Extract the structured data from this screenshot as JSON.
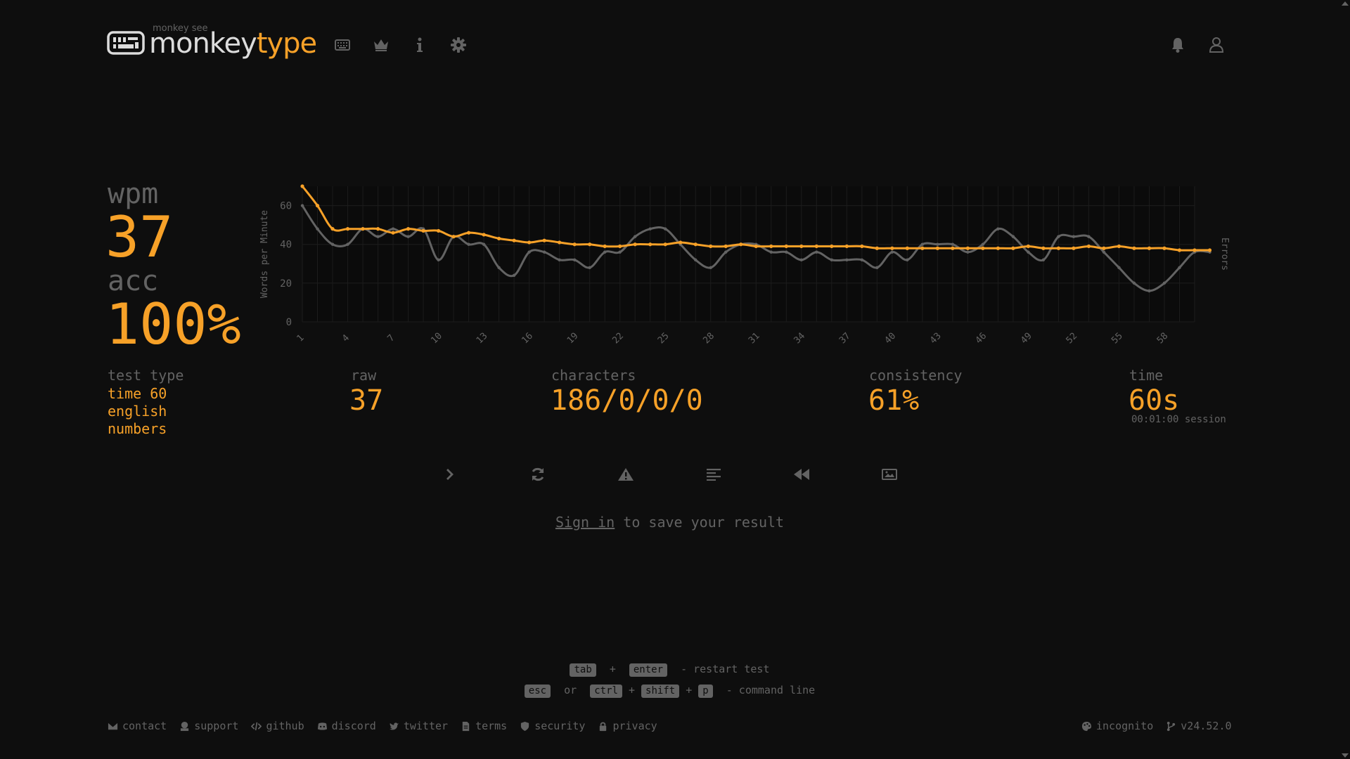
{
  "app": {
    "logo_top": "monkey see",
    "logo_part1": "monkey",
    "logo_part2": "type"
  },
  "nav": {
    "icons": [
      "keyboard-icon",
      "crown-icon",
      "info-icon",
      "gear-icon"
    ],
    "right_icons": [
      "bell-icon",
      "user-icon"
    ]
  },
  "stats": {
    "wpm_label": "wpm",
    "wpm_value": "37",
    "acc_label": "acc",
    "acc_value": "100%",
    "test_type_label": "test type",
    "test_type_lines": [
      "time 60",
      "english",
      "numbers"
    ],
    "raw_label": "raw",
    "raw_value": "37",
    "characters_label": "characters",
    "characters_value": "186/0/0/0",
    "consistency_label": "consistency",
    "consistency_value": "61%",
    "time_label": "time",
    "time_value": "60s",
    "session_text": "00:01:00 session"
  },
  "chart_data": {
    "type": "line",
    "ylabel": "Words per Minute",
    "y2label": "Errors",
    "ylim": [
      0,
      70
    ],
    "yticks": [
      0,
      20,
      40,
      60
    ],
    "xlim": [
      1,
      60
    ],
    "xticks": [
      1,
      4,
      7,
      10,
      13,
      16,
      19,
      22,
      25,
      28,
      31,
      34,
      37,
      40,
      43,
      46,
      49,
      52,
      55,
      58
    ],
    "colors": {
      "wpm": "#f7a128",
      "raw": "#636363",
      "grid": "#1c1c1c"
    },
    "series": [
      {
        "key": "wpm",
        "values": [
          70,
          60,
          48,
          48,
          48,
          48,
          46,
          48,
          47,
          47,
          44,
          46,
          45,
          43,
          42,
          41,
          42,
          41,
          40,
          40,
          39,
          39,
          40,
          40,
          40,
          41,
          40,
          39,
          39,
          40,
          39,
          39,
          39,
          39,
          39,
          39,
          39,
          39,
          38,
          38,
          38,
          38,
          38,
          38,
          38,
          38,
          38,
          38,
          39,
          38,
          38,
          38,
          39,
          38,
          39,
          38,
          38,
          38,
          37,
          37,
          37
        ]
      },
      {
        "key": "raw",
        "values": [
          60,
          48,
          40,
          40,
          48,
          44,
          48,
          44,
          48,
          32,
          44,
          40,
          40,
          28,
          24,
          36,
          36,
          32,
          32,
          28,
          36,
          36,
          44,
          48,
          48,
          40,
          32,
          28,
          36,
          40,
          40,
          36,
          36,
          32,
          36,
          32,
          32,
          32,
          28,
          36,
          32,
          40,
          40,
          40,
          36,
          40,
          48,
          44,
          36,
          32,
          44,
          44,
          44,
          36,
          28,
          20,
          16,
          20,
          28,
          36,
          36
        ]
      }
    ]
  },
  "buttons": [
    "next-test-button",
    "restart-button",
    "report-button",
    "words-history-button",
    "replay-button",
    "screenshot-button"
  ],
  "signin": {
    "link": "Sign in",
    "rest": "to save your result"
  },
  "hints": {
    "line1": {
      "k1": "tab",
      "plus": "+",
      "k2": "enter",
      "text": "- restart test"
    },
    "line2": {
      "k1": "esc",
      "or": "or",
      "k2": "ctrl",
      "plus1": "+",
      "k3": "shift",
      "plus2": "+",
      "k4": "p",
      "text": "- command line"
    }
  },
  "footer": {
    "links": [
      "contact",
      "support",
      "github",
      "discord",
      "twitter",
      "terms",
      "security",
      "privacy"
    ],
    "right": [
      "incognito",
      "v24.52.0"
    ]
  }
}
